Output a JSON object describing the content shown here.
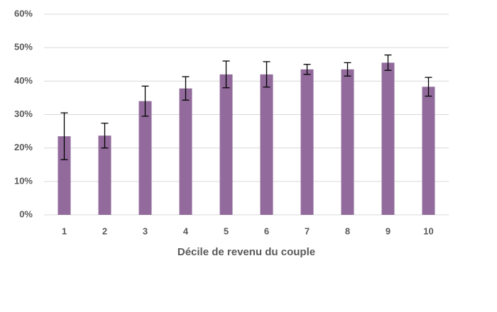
{
  "chart_data": {
    "type": "bar",
    "x_label": "Décile de revenu du couple",
    "categories": [
      "1",
      "2",
      "3",
      "4",
      "5",
      "6",
      "7",
      "8",
      "9",
      "10"
    ],
    "values": [
      23.5,
      23.7,
      34,
      37.8,
      42,
      42,
      43.5,
      43.5,
      45.5,
      38.3
    ],
    "errors": [
      7,
      3.7,
      4.5,
      3.5,
      4,
      3.8,
      1.5,
      2,
      2.3,
      2.8
    ],
    "color": "#926b9c",
    "ylim": [
      0,
      60
    ],
    "yticks": [
      {
        "value": 0,
        "label": "0%"
      },
      {
        "value": 10,
        "label": "10%"
      },
      {
        "value": 20,
        "label": "20%"
      },
      {
        "value": 30,
        "label": "30%"
      },
      {
        "value": 40,
        "label": "40%"
      },
      {
        "value": 50,
        "label": "50%"
      },
      {
        "value": 60,
        "label": "60%"
      }
    ],
    "grid": true
  }
}
